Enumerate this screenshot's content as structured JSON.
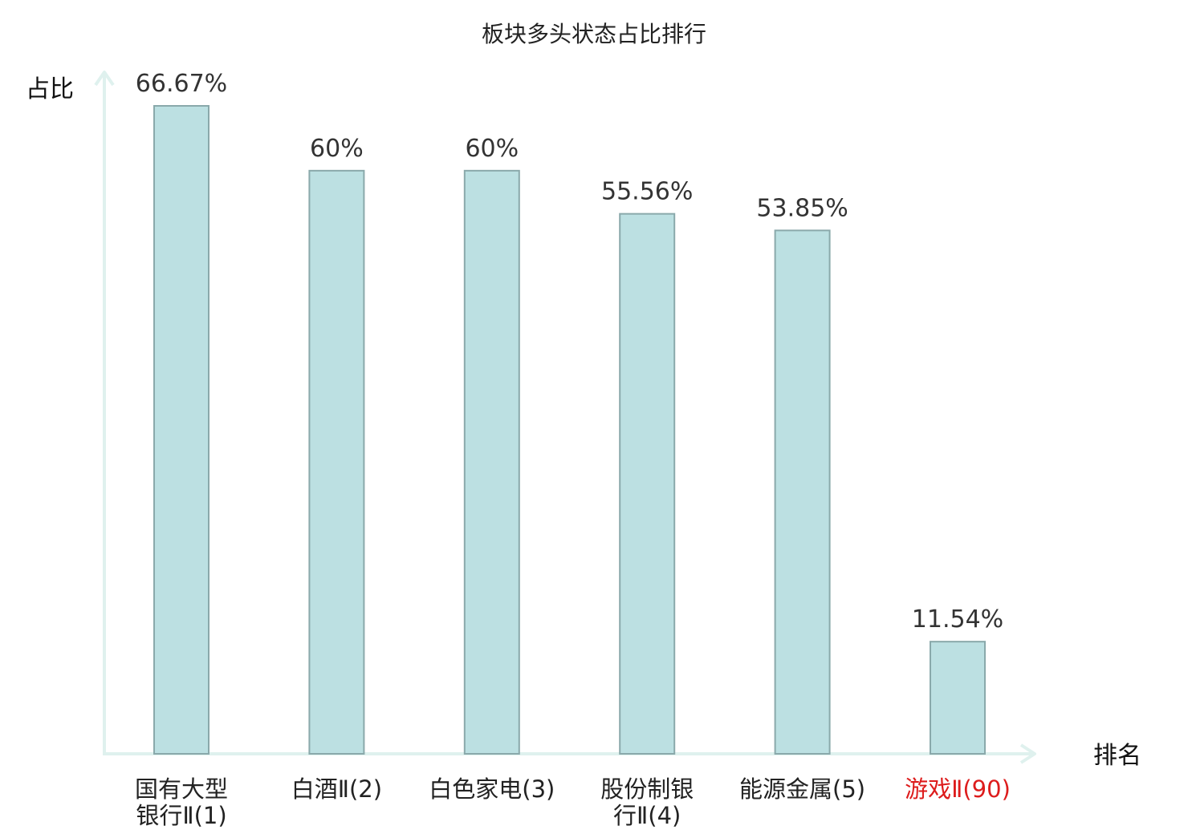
{
  "chart_data": {
    "type": "bar",
    "title": "板块多头状态占比排行",
    "ylabel": "占比",
    "xlabel": "排名",
    "categories": [
      [
        "国有大型",
        "银行Ⅱ(1)"
      ],
      [
        "白酒Ⅱ(2)"
      ],
      [
        "白色家电(3)"
      ],
      [
        "股份制银",
        "行Ⅱ(4)"
      ],
      [
        "能源金属(5)"
      ],
      [
        "游戏Ⅱ(90)"
      ]
    ],
    "values": [
      66.67,
      60,
      60,
      55.56,
      53.85,
      11.54
    ],
    "value_labels": [
      "66.67%",
      "60%",
      "60%",
      "55.56%",
      "53.85%",
      "11.54%"
    ],
    "highlight_index": 5,
    "ylim": [
      0,
      70
    ],
    "grid": false,
    "legend": "none",
    "colors": {
      "bar_fill": "#bce0e2",
      "bar_stroke": "#8aa9ab",
      "axis": "#dff1ee",
      "highlight_text": "#dd1c1c"
    }
  }
}
